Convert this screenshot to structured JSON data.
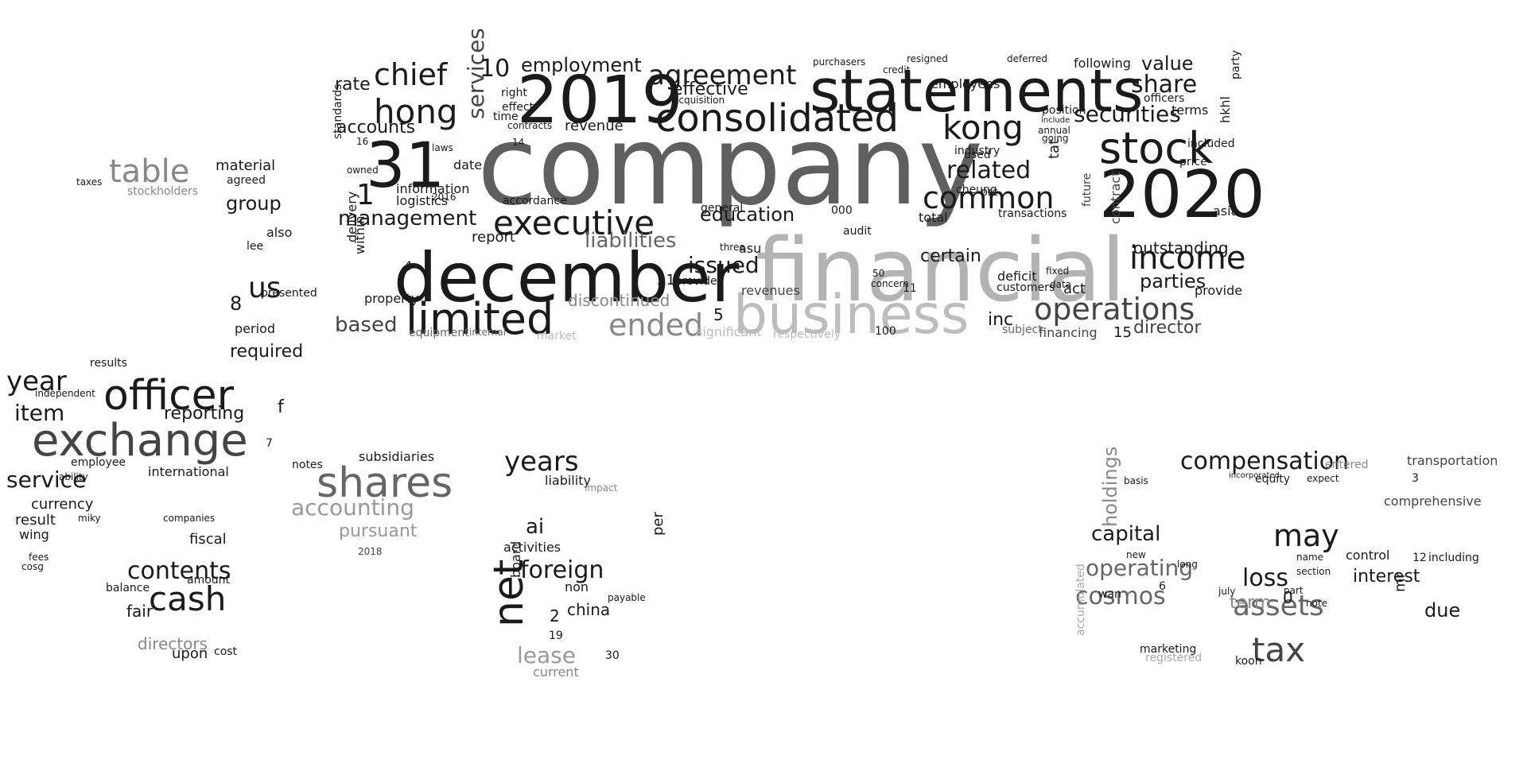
{
  "colors": {
    "background": "#ffffff",
    "dark": "#111111",
    "mid": "#444444",
    "gray": "#666666",
    "light": "#999999",
    "pale": "#bbbbbb"
  },
  "words": [
    {
      "t": "company",
      "c": "#5f5f5f"
    },
    {
      "t": "financial",
      "c": "#b3b3b3"
    },
    {
      "t": "statements",
      "c": "#1a1a1a"
    },
    {
      "t": "december",
      "c": "#1a1a1a"
    },
    {
      "t": "business",
      "c": "#bdbdbd"
    },
    {
      "t": "2019",
      "c": "#1a1a1a"
    },
    {
      "t": "2020",
      "c": "#1a1a1a"
    },
    {
      "t": "31",
      "c": "#1a1a1a"
    },
    {
      "t": "limited",
      "c": "#1a1a1a"
    },
    {
      "t": "consolidated",
      "c": "#1a1a1a"
    },
    {
      "t": "executive",
      "c": "#1a1a1a"
    },
    {
      "t": "stock",
      "c": "#1a1a1a"
    },
    {
      "t": "kong",
      "c": "#1a1a1a"
    },
    {
      "t": "hong",
      "c": "#1a1a1a"
    },
    {
      "t": "chief",
      "c": "#1a1a1a"
    },
    {
      "t": "agreement",
      "c": "#1a1a1a"
    },
    {
      "t": "common",
      "c": "#1a1a1a"
    },
    {
      "t": "income",
      "c": "#1a1a1a"
    },
    {
      "t": "operations",
      "c": "#444444"
    },
    {
      "t": "management",
      "c": "#1a1a1a"
    },
    {
      "t": "ended",
      "c": "#888888"
    },
    {
      "t": "services",
      "c": "#444444"
    },
    {
      "t": "related",
      "c": "#1a1a1a"
    },
    {
      "t": "share",
      "c": "#1a1a1a"
    },
    {
      "t": "securities",
      "c": "#1a1a1a"
    },
    {
      "t": "liabilities",
      "c": "#666666"
    },
    {
      "t": "education",
      "c": "#1a1a1a"
    },
    {
      "t": "effective",
      "c": "#1a1a1a"
    },
    {
      "t": "employment",
      "c": "#1a1a1a"
    },
    {
      "t": "accounts",
      "c": "#1a1a1a"
    },
    {
      "t": "issued",
      "c": "#1a1a1a"
    },
    {
      "t": "parties",
      "c": "#1a1a1a"
    },
    {
      "t": "director",
      "c": "#444444"
    },
    {
      "t": "based",
      "c": "#444444"
    },
    {
      "t": "value",
      "c": "#1a1a1a"
    },
    {
      "t": "outstanding",
      "c": "#1a1a1a"
    },
    {
      "t": "certain",
      "c": "#1a1a1a"
    },
    {
      "t": "inc",
      "c": "#1a1a1a"
    },
    {
      "t": "discontinued",
      "c": "#888888"
    },
    {
      "t": "revenues",
      "c": "#444444"
    },
    {
      "t": "revenue",
      "c": "#1a1a1a"
    },
    {
      "t": "rate",
      "c": "#1a1a1a"
    },
    {
      "t": "10",
      "c": "#1a1a1a"
    },
    {
      "t": "1",
      "c": "#1a1a1a"
    },
    {
      "t": "information",
      "c": "#1a1a1a"
    },
    {
      "t": "logistics",
      "c": "#1a1a1a"
    },
    {
      "t": "date",
      "c": "#1a1a1a"
    },
    {
      "t": "report",
      "c": "#1a1a1a"
    },
    {
      "t": "property",
      "c": "#1a1a1a"
    },
    {
      "t": "employees",
      "c": "#1a1a1a"
    },
    {
      "t": "officers",
      "c": "#1a1a1a"
    },
    {
      "t": "terms",
      "c": "#1a1a1a"
    },
    {
      "t": "price",
      "c": "#1a1a1a"
    },
    {
      "t": "included",
      "c": "#1a1a1a"
    },
    {
      "t": "provide",
      "c": "#1a1a1a"
    },
    {
      "t": "act",
      "c": "#1a1a1a"
    },
    {
      "t": "contract",
      "c": "#444444"
    },
    {
      "t": "total",
      "c": "#1a1a1a"
    },
    {
      "t": "customers",
      "c": "#1a1a1a"
    },
    {
      "t": "transactions",
      "c": "#1a1a1a"
    },
    {
      "t": "asia",
      "c": "#1a1a1a"
    },
    {
      "t": "future",
      "c": "#444444"
    },
    {
      "t": "tat",
      "c": "#1a1a1a"
    },
    {
      "t": "hkhl",
      "c": "#1a1a1a"
    },
    {
      "t": "party",
      "c": "#1a1a1a"
    },
    {
      "t": "following",
      "c": "#1a1a1a"
    },
    {
      "t": "delivery",
      "c": "#1a1a1a"
    },
    {
      "t": "standards",
      "c": "#1a1a1a"
    },
    {
      "t": "audit",
      "c": "#1a1a1a"
    },
    {
      "t": "asu",
      "c": "#1a1a1a"
    },
    {
      "t": "000",
      "c": "#1a1a1a"
    },
    {
      "t": "cheung",
      "c": "#1a1a1a"
    },
    {
      "t": "industry",
      "c": "#1a1a1a"
    },
    {
      "t": "used",
      "c": "#1a1a1a"
    },
    {
      "t": "deficit",
      "c": "#1a1a1a"
    },
    {
      "t": "5",
      "c": "#1a1a1a"
    },
    {
      "t": "15",
      "c": "#1a1a1a"
    },
    {
      "t": "21",
      "c": "#1a1a1a"
    },
    {
      "t": "4",
      "c": "#1a1a1a"
    },
    {
      "t": "financing",
      "c": "#444444"
    },
    {
      "t": "provided",
      "c": "#1a1a1a"
    },
    {
      "t": "within",
      "c": "#1a1a1a"
    },
    {
      "t": "owned",
      "c": "#1a1a1a"
    },
    {
      "t": "laws",
      "c": "#1a1a1a"
    },
    {
      "t": "16",
      "c": "#1a1a1a"
    },
    {
      "t": "acquisition",
      "c": "#1a1a1a"
    },
    {
      "t": "general",
      "c": "#1a1a1a"
    },
    {
      "t": "three",
      "c": "#1a1a1a"
    },
    {
      "t": "accordance",
      "c": "#1a1a1a"
    },
    {
      "t": "significant",
      "c": "#bbbbbb"
    },
    {
      "t": "respectively",
      "c": "#bbbbbb"
    },
    {
      "t": "market",
      "c": "#bbbbbb"
    },
    {
      "t": "equipment",
      "c": "#666666"
    },
    {
      "t": "internal",
      "c": "#666666"
    },
    {
      "t": "subject",
      "c": "#666666"
    },
    {
      "t": "position",
      "c": "#1a1a1a"
    },
    {
      "t": "include",
      "c": "#1a1a1a"
    },
    {
      "t": "annual",
      "c": "#1a1a1a"
    },
    {
      "t": "going",
      "c": "#1a1a1a"
    },
    {
      "t": "purchasers",
      "c": "#1a1a1a"
    },
    {
      "t": "credit",
      "c": "#1a1a1a"
    },
    {
      "t": "resigned",
      "c": "#1a1a1a"
    },
    {
      "t": "deferred",
      "c": "#1a1a1a"
    },
    {
      "t": "right",
      "c": "#1a1a1a"
    },
    {
      "t": "effect",
      "c": "#1a1a1a"
    },
    {
      "t": "time",
      "c": "#1a1a1a"
    },
    {
      "t": "14",
      "c": "#1a1a1a"
    },
    {
      "t": "contracts",
      "c": "#1a1a1a"
    },
    {
      "t": "concern",
      "c": "#1a1a1a"
    },
    {
      "t": "prc",
      "c": "#1a1a1a"
    },
    {
      "t": "fixed",
      "c": "#1a1a1a"
    },
    {
      "t": "data",
      "c": "#1a1a1a"
    },
    {
      "t": "100",
      "c": "#1a1a1a"
    },
    {
      "t": "11",
      "c": "#1a1a1a"
    },
    {
      "t": "50",
      "c": "#1a1a1a"
    },
    {
      "t": "2016",
      "c": "#1a1a1a"
    },
    {
      "t": "officer",
      "c": "#1a1a1a"
    },
    {
      "t": "exchange",
      "c": "#444444"
    },
    {
      "t": "table",
      "c": "#888888"
    },
    {
      "t": "year",
      "c": "#1a1a1a"
    },
    {
      "t": "us",
      "c": "#1a1a1a"
    },
    {
      "t": "item",
      "c": "#1a1a1a"
    },
    {
      "t": "service",
      "c": "#1a1a1a"
    },
    {
      "t": "group",
      "c": "#1a1a1a"
    },
    {
      "t": "reporting",
      "c": "#1a1a1a"
    },
    {
      "t": "required",
      "c": "#1a1a1a"
    },
    {
      "t": "international",
      "c": "#1a1a1a"
    },
    {
      "t": "currency",
      "c": "#1a1a1a"
    },
    {
      "t": "result",
      "c": "#1a1a1a"
    },
    {
      "t": "wing",
      "c": "#1a1a1a"
    },
    {
      "t": "material",
      "c": "#1a1a1a"
    },
    {
      "t": "agreed",
      "c": "#1a1a1a"
    },
    {
      "t": "stockholders",
      "c": "#888888"
    },
    {
      "t": "also",
      "c": "#1a1a1a"
    },
    {
      "t": "lee",
      "c": "#1a1a1a"
    },
    {
      "t": "presented",
      "c": "#1a1a1a"
    },
    {
      "t": "period",
      "c": "#1a1a1a"
    },
    {
      "t": "results",
      "c": "#1a1a1a"
    },
    {
      "t": "independent",
      "c": "#1a1a1a"
    },
    {
      "t": "employee",
      "c": "#1a1a1a"
    },
    {
      "t": "ability",
      "c": "#1a1a1a"
    },
    {
      "t": "8",
      "c": "#1a1a1a"
    },
    {
      "t": "f",
      "c": "#1a1a1a"
    },
    {
      "t": "7",
      "c": "#1a1a1a"
    },
    {
      "t": "taxes",
      "c": "#1a1a1a"
    },
    {
      "t": "fees",
      "c": "#1a1a1a"
    },
    {
      "t": "cosg",
      "c": "#1a1a1a"
    },
    {
      "t": "shares",
      "c": "#666666"
    },
    {
      "t": "accounting",
      "c": "#999999"
    },
    {
      "t": "pursuant",
      "c": "#999999"
    },
    {
      "t": "cash",
      "c": "#1a1a1a"
    },
    {
      "t": "contents",
      "c": "#1a1a1a"
    },
    {
      "t": "fiscal",
      "c": "#1a1a1a"
    },
    {
      "t": "directors",
      "c": "#888888"
    },
    {
      "t": "fair",
      "c": "#1a1a1a"
    },
    {
      "t": "balance",
      "c": "#1a1a1a"
    },
    {
      "t": "amount",
      "c": "#1a1a1a"
    },
    {
      "t": "upon",
      "c": "#1a1a1a"
    },
    {
      "t": "cost",
      "c": "#1a1a1a"
    },
    {
      "t": "subsidiaries",
      "c": "#1a1a1a"
    },
    {
      "t": "notes",
      "c": "#1a1a1a"
    },
    {
      "t": "miky",
      "c": "#1a1a1a"
    },
    {
      "t": "companies",
      "c": "#1a1a1a"
    },
    {
      "t": "2018",
      "c": "#444444"
    },
    {
      "t": "net",
      "c": "#1a1a1a"
    },
    {
      "t": "foreign",
      "c": "#1a1a1a"
    },
    {
      "t": "years",
      "c": "#1a1a1a"
    },
    {
      "t": "lease",
      "c": "#999999"
    },
    {
      "t": "ai",
      "c": "#1a1a1a"
    },
    {
      "t": "activities",
      "c": "#1a1a1a"
    },
    {
      "t": "china",
      "c": "#1a1a1a"
    },
    {
      "t": "board",
      "c": "#1a1a1a"
    },
    {
      "t": "2",
      "c": "#1a1a1a"
    },
    {
      "t": "non",
      "c": "#1a1a1a"
    },
    {
      "t": "liability",
      "c": "#1a1a1a"
    },
    {
      "t": "per",
      "c": "#1a1a1a"
    },
    {
      "t": "current",
      "c": "#888888"
    },
    {
      "t": "19",
      "c": "#1a1a1a"
    },
    {
      "t": "30",
      "c": "#1a1a1a"
    },
    {
      "t": "impact",
      "c": "#888888"
    },
    {
      "t": "payable",
      "c": "#1a1a1a"
    },
    {
      "t": "compensation",
      "c": "#1a1a1a"
    },
    {
      "t": "may",
      "c": "#1a1a1a"
    },
    {
      "t": "tax",
      "c": "#444444"
    },
    {
      "t": "assets",
      "c": "#666666"
    },
    {
      "t": "loss",
      "c": "#1a1a1a"
    },
    {
      "t": "cosmos",
      "c": "#666666"
    },
    {
      "t": "operating",
      "c": "#666666"
    },
    {
      "t": "capital",
      "c": "#1a1a1a"
    },
    {
      "t": "holdings",
      "c": "#888888"
    },
    {
      "t": "interest",
      "c": "#1a1a1a"
    },
    {
      "t": "control",
      "c": "#1a1a1a"
    },
    {
      "t": "term",
      "c": "#888888"
    },
    {
      "t": "0",
      "c": "#1a1a1a"
    },
    {
      "t": "mr",
      "c": "#1a1a1a"
    },
    {
      "t": "due",
      "c": "#1a1a1a"
    },
    {
      "t": "including",
      "c": "#1a1a1a"
    },
    {
      "t": "comprehensive",
      "c": "#444444"
    },
    {
      "t": "equity",
      "c": "#1a1a1a"
    },
    {
      "t": "basis",
      "c": "#1a1a1a"
    },
    {
      "t": "section",
      "c": "#1a1a1a"
    },
    {
      "t": "wan",
      "c": "#1a1a1a"
    },
    {
      "t": "6",
      "c": "#1a1a1a"
    },
    {
      "t": "july",
      "c": "#1a1a1a"
    },
    {
      "t": "marketing",
      "c": "#1a1a1a"
    },
    {
      "t": "registered",
      "c": "#aaaaaa"
    },
    {
      "t": "accumulated",
      "c": "#aaaaaa"
    },
    {
      "t": "koon",
      "c": "#1a1a1a"
    },
    {
      "t": "note",
      "c": "#1a1a1a"
    },
    {
      "t": "12",
      "c": "#1a1a1a"
    },
    {
      "t": "3",
      "c": "#1a1a1a"
    },
    {
      "t": "transportation",
      "c": "#444444"
    },
    {
      "t": "entered",
      "c": "#888888"
    },
    {
      "t": "incorporated",
      "c": "#1a1a1a"
    },
    {
      "t": "name",
      "c": "#1a1a1a"
    },
    {
      "t": "part",
      "c": "#1a1a1a"
    },
    {
      "t": "expect",
      "c": "#1a1a1a"
    },
    {
      "t": "new",
      "c": "#1a1a1a"
    },
    {
      "t": "long",
      "c": "#1a1a1a"
    }
  ]
}
